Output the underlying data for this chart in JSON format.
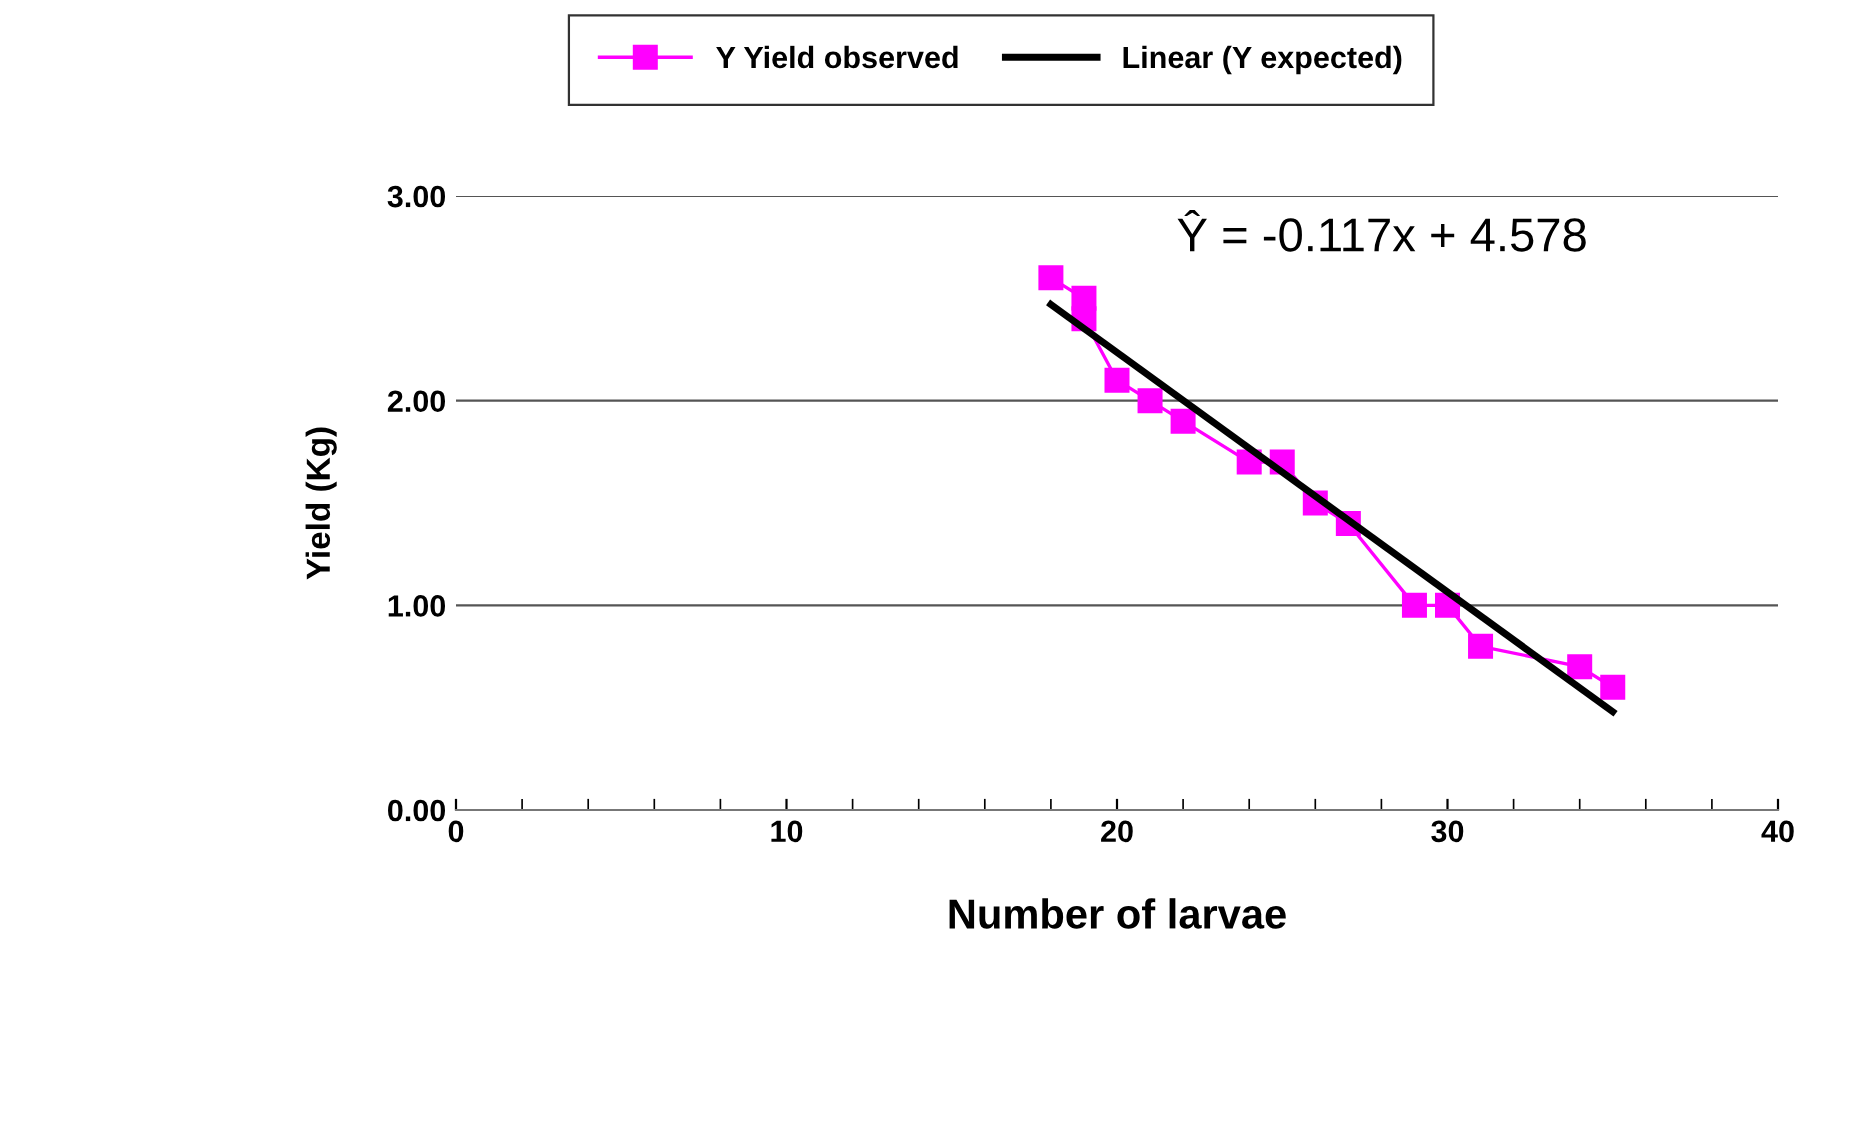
{
  "chart_data": {
    "type": "line",
    "xlabel": "Number of larvae",
    "ylabel": "Yield (Kg)",
    "xlim": [
      0,
      40
    ],
    "xticks": [
      0,
      10,
      20,
      30,
      40
    ],
    "ylim": [
      0,
      3
    ],
    "yticks": [
      {
        "value": 0,
        "label": "0.00"
      },
      {
        "value": 1,
        "label": "1.00"
      },
      {
        "value": 2,
        "label": "2.00"
      },
      {
        "value": 3,
        "label": "3.00"
      }
    ],
    "grid": "y",
    "legend": "top",
    "annotations": [
      "Ŷ = -0.117x + 4.578"
    ],
    "series": [
      {
        "name": "Y Yield observed",
        "color": "#ff00ff",
        "marker": "square",
        "x": [
          18,
          19,
          19,
          20,
          21,
          22,
          24,
          25,
          26,
          27,
          29,
          30,
          31,
          34,
          35
        ],
        "values": [
          2.6,
          2.5,
          2.4,
          2.1,
          2.0,
          1.9,
          1.7,
          1.7,
          1.5,
          1.4,
          1.0,
          1.0,
          0.8,
          0.7,
          0.6
        ]
      },
      {
        "name": "Linear (Y expected)",
        "color": "#000000",
        "marker": "none",
        "x": [
          18,
          35
        ],
        "values": [
          2.47,
          0.48
        ]
      }
    ]
  }
}
